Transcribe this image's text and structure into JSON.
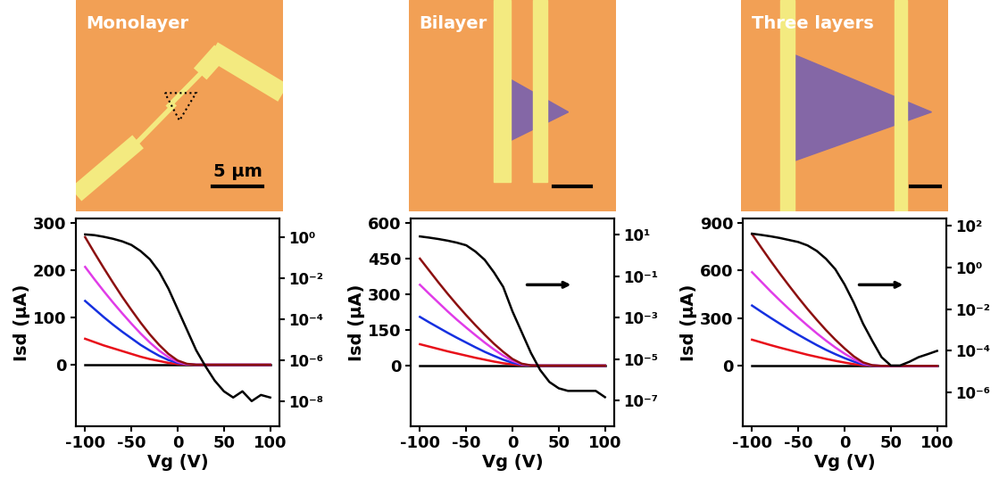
{
  "images": [
    {
      "label": "Monolayer",
      "scale_bar": "5 µm"
    },
    {
      "label": "Bilayer"
    },
    {
      "label": "Three layers"
    }
  ],
  "chart_data": [
    {
      "type": "line",
      "xlabel": "Vg (V)",
      "ylabel": "Isd (µA)",
      "x": [
        -100,
        -90,
        -80,
        -70,
        -60,
        -50,
        -40,
        -30,
        -20,
        -10,
        0,
        10,
        20,
        30,
        40,
        50,
        60,
        70,
        80,
        90,
        100
      ],
      "xlim": [
        -110,
        110
      ],
      "xticks": [
        -100,
        -50,
        0,
        50,
        100
      ],
      "ylim": [
        -130,
        310
      ],
      "yticks": [
        0,
        100,
        200,
        300
      ],
      "y2lim": [
        6e-10,
        8
      ],
      "y2ticks": [
        {
          "value": 1,
          "label": "10⁰"
        },
        {
          "value": 0.01,
          "label": "10⁻²"
        },
        {
          "value": 0.0001,
          "label": "10⁻⁴"
        },
        {
          "value": 1e-06,
          "label": "10⁻⁶"
        },
        {
          "value": 1e-08,
          "label": "10⁻⁸"
        }
      ],
      "series": [
        {
          "color": "#000000",
          "values": [
            0,
            0,
            0,
            0,
            0,
            0,
            0,
            0,
            0,
            0,
            0,
            0,
            0,
            0,
            0,
            0,
            0,
            0,
            0,
            0,
            0
          ]
        },
        {
          "color": "#e8101a",
          "values": [
            55,
            48,
            41,
            35,
            29,
            23,
            17,
            12,
            8,
            4,
            1.5,
            0.3,
            0,
            0,
            0,
            0,
            0,
            0,
            0,
            0,
            0
          ]
        },
        {
          "color": "#1530e0",
          "values": [
            135,
            118,
            101,
            85,
            70,
            56,
            42,
            30,
            19,
            10,
            4,
            1,
            0,
            0,
            0,
            0,
            0,
            0,
            0,
            0,
            0
          ]
        },
        {
          "color": "#e03ce8",
          "values": [
            207,
            181,
            156,
            132,
            109,
            87,
            66,
            47,
            30,
            16,
            6,
            1,
            0,
            0,
            0,
            0,
            0,
            0,
            0,
            0,
            0
          ]
        },
        {
          "color": "#8c1010",
          "values": [
            270,
            237,
            205,
            174,
            144,
            116,
            89,
            64,
            42,
            23,
            9,
            2,
            0,
            0,
            0,
            0,
            0,
            0,
            0,
            0,
            0
          ]
        },
        {
          "color": "#000000",
          "axis": "y2",
          "log": "y",
          "values": [
            1.3,
            1.2,
            1.0,
            0.8,
            0.6,
            0.4,
            0.2,
            0.08,
            0.02,
            0.003,
            0.0003,
            3e-05,
            3e-06,
            5e-07,
            1e-07,
            3e-08,
            1.5e-08,
            3e-08,
            1e-08,
            2e-08,
            1.5e-08
          ]
        }
      ]
    },
    {
      "type": "line",
      "xlabel": "Vg (V)",
      "ylabel": "Isd (µA)",
      "x": [
        -100,
        -90,
        -80,
        -70,
        -60,
        -50,
        -40,
        -30,
        -20,
        -10,
        0,
        10,
        20,
        30,
        40,
        50,
        60,
        70,
        80,
        90,
        100
      ],
      "xlim": [
        -110,
        110
      ],
      "xticks": [
        -100,
        -50,
        0,
        50,
        100
      ],
      "ylim": [
        -255,
        620
      ],
      "yticks": [
        0,
        150,
        300,
        450,
        600
      ],
      "y2lim": [
        6e-09,
        60
      ],
      "y2ticks": [
        {
          "value": 10,
          "label": "10¹"
        },
        {
          "value": 0.1,
          "label": "10⁻¹"
        },
        {
          "value": 0.001,
          "label": "10⁻³"
        },
        {
          "value": 1e-05,
          "label": "10⁻⁵"
        },
        {
          "value": 1e-07,
          "label": "10⁻⁷"
        }
      ],
      "series": [
        {
          "color": "#000000",
          "values": [
            0,
            0,
            0,
            0,
            0,
            0,
            0,
            0,
            0,
            0,
            0,
            0,
            0,
            0,
            0,
            0,
            0,
            0,
            0,
            0,
            0
          ]
        },
        {
          "color": "#e8101a",
          "values": [
            90,
            80,
            70,
            60,
            51,
            42,
            33,
            25,
            17,
            10,
            5,
            1.5,
            0.2,
            0,
            0,
            0,
            0,
            0,
            0,
            0,
            0
          ]
        },
        {
          "color": "#1530e0",
          "values": [
            205,
            182,
            160,
            138,
            117,
            97,
            77,
            58,
            41,
            25,
            12,
            4,
            0.5,
            0,
            0,
            0,
            0,
            0,
            0,
            0,
            0
          ]
        },
        {
          "color": "#e03ce8",
          "values": [
            340,
            302,
            265,
            228,
            193,
            160,
            128,
            97,
            68,
            42,
            20,
            6,
            1,
            0,
            0,
            0,
            0,
            0,
            0,
            0,
            0
          ]
        },
        {
          "color": "#8c1010",
          "values": [
            450,
            400,
            350,
            302,
            256,
            212,
            170,
            130,
            92,
            58,
            28,
            8,
            1,
            0,
            0,
            0,
            0,
            0,
            0,
            0,
            0
          ]
        },
        {
          "color": "#000000",
          "axis": "y2",
          "log": "y",
          "values": [
            8,
            7,
            6,
            5,
            4,
            3,
            1.5,
            0.6,
            0.15,
            0.03,
            0.002,
            0.0002,
            2e-05,
            3e-06,
            8e-07,
            4e-07,
            3e-07,
            3e-07,
            3e-07,
            3e-07,
            1.5e-07
          ]
        }
      ]
    },
    {
      "type": "line",
      "xlabel": "Vg (V)",
      "ylabel": "Isd (µA)",
      "x": [
        -100,
        -90,
        -80,
        -70,
        -60,
        -50,
        -40,
        -30,
        -20,
        -10,
        0,
        10,
        20,
        30,
        40,
        50,
        60,
        70,
        80,
        90,
        100
      ],
      "xlim": [
        -110,
        110
      ],
      "xticks": [
        -100,
        -50,
        0,
        50,
        100
      ],
      "ylim": [
        -380,
        930
      ],
      "yticks": [
        0,
        300,
        600,
        900
      ],
      "y2lim": [
        2.5e-08,
        220
      ],
      "y2ticks": [
        {
          "value": 100,
          "label": "10²"
        },
        {
          "value": 1,
          "label": "10⁰"
        },
        {
          "value": 0.01,
          "label": "10⁻²"
        },
        {
          "value": 0.0001,
          "label": "10⁻⁴"
        },
        {
          "value": 1e-06,
          "label": "10⁻⁶"
        }
      ],
      "series": [
        {
          "color": "#000000",
          "values": [
            0,
            0,
            0,
            0,
            0,
            0,
            0,
            0,
            0,
            0,
            0,
            0,
            0,
            0,
            0,
            0,
            0,
            0,
            0,
            0,
            0
          ]
        },
        {
          "color": "#e8101a",
          "values": [
            165,
            148,
            131,
            115,
            100,
            85,
            70,
            57,
            44,
            32,
            21,
            11,
            4,
            1,
            0,
            0,
            0,
            0,
            0,
            0,
            0
          ]
        },
        {
          "color": "#1530e0",
          "values": [
            380,
            341,
            303,
            266,
            230,
            196,
            163,
            131,
            101,
            74,
            49,
            27,
            10,
            2,
            0,
            0,
            0,
            0,
            0,
            0,
            0
          ]
        },
        {
          "color": "#e03ce8",
          "values": [
            590,
            530,
            470,
            413,
            358,
            305,
            254,
            205,
            159,
            116,
            77,
            42,
            15,
            3,
            0,
            0,
            0,
            0,
            0,
            0,
            0
          ]
        },
        {
          "color": "#8c1010",
          "values": [
            830,
            745,
            662,
            582,
            505,
            430,
            358,
            290,
            225,
            165,
            110,
            60,
            22,
            4,
            0,
            0,
            0,
            0,
            0,
            0,
            0
          ]
        },
        {
          "color": "#000000",
          "axis": "y2",
          "log": "y",
          "values": [
            40,
            35,
            30,
            25,
            20,
            16,
            11,
            6,
            2.5,
            0.8,
            0.15,
            0.02,
            0.002,
            0.0003,
            5e-05,
            2e-05,
            2e-05,
            3e-05,
            5e-05,
            7e-05,
            0.0001
          ]
        }
      ]
    }
  ]
}
